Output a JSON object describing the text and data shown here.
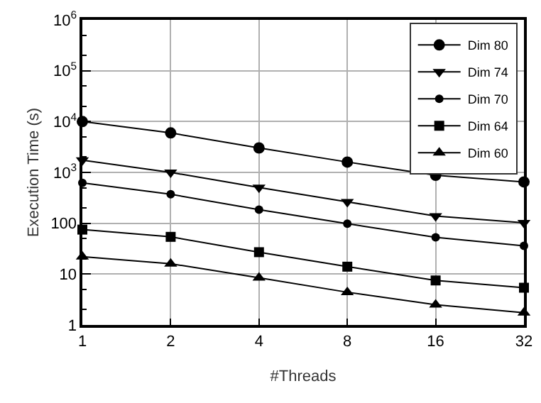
{
  "chart_data": {
    "type": "line",
    "xlabel": "#Threads",
    "ylabel": "Execution Time (s)",
    "log": "xy",
    "x": [
      1,
      2,
      4,
      8,
      16,
      32
    ],
    "series": [
      {
        "name": "Dim 80",
        "color": "#000000",
        "marker": "circle",
        "values": [
          10000,
          5980,
          3030,
          1600,
          880,
          650
        ]
      },
      {
        "name": "Dim 74",
        "color": "#000000",
        "marker": "triangle-down",
        "values": [
          1740,
          1000,
          507,
          263,
          139,
          102
        ]
      },
      {
        "name": "Dim 70",
        "color": "#000000",
        "marker": "circle-small",
        "values": [
          624,
          372,
          185,
          98,
          53,
          36
        ]
      },
      {
        "name": "Dim 64",
        "color": "#000000",
        "marker": "square",
        "values": [
          75,
          54,
          27,
          14,
          7.5,
          5.4
        ]
      },
      {
        "name": "Dim 60",
        "color": "#000000",
        "marker": "triangle",
        "values": [
          22,
          16,
          8.5,
          4.4,
          2.5,
          1.74
        ]
      }
    ],
    "xlim": [
      1,
      32
    ],
    "xticks": [
      1,
      2,
      4,
      8,
      16,
      32
    ],
    "ylim": [
      1,
      1000000
    ],
    "yticks": [
      1,
      10,
      100,
      {
        "value": 1000,
        "label": "10$^{3}$"
      },
      {
        "value": 10000,
        "label": "10$^{4}$"
      },
      {
        "value": 100000,
        "label": "10$^{5}$"
      },
      {
        "value": 1000000,
        "label": "10$^{6}$"
      }
    ],
    "grid": true,
    "legend": "top right",
    "line_style": "solid"
  }
}
